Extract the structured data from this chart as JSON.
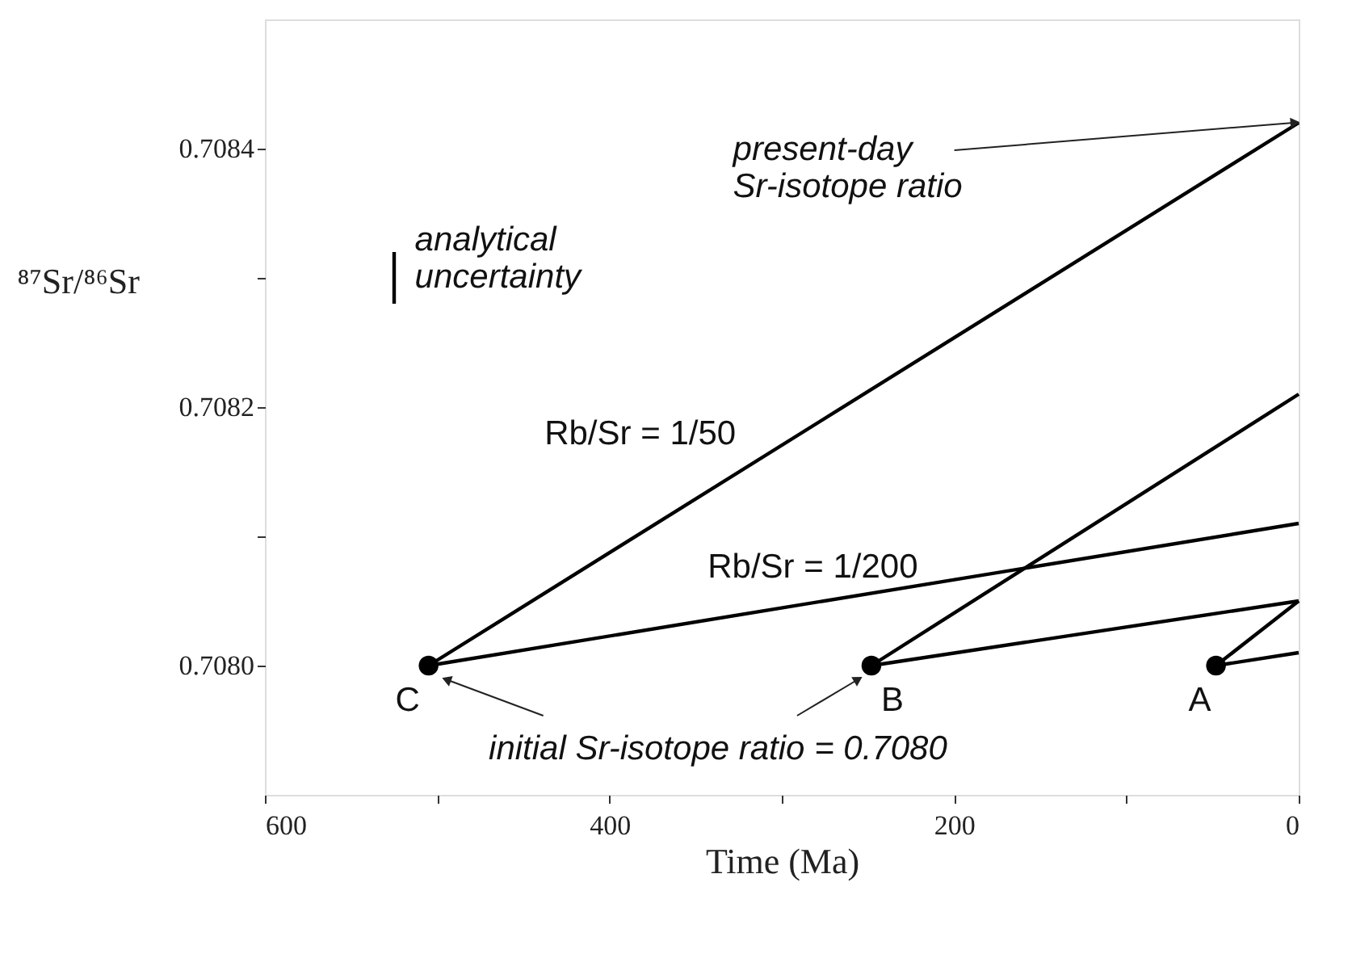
{
  "chart_data": {
    "type": "line",
    "xlabel": "Time (Ma)",
    "ylabel": "⁸⁷Sr/⁸⁶Sr",
    "xlim": [
      600,
      0
    ],
    "ylim": [
      0.7079,
      0.7085
    ],
    "xticks": [
      600,
      {
        "value": 500,
        "label": null
      },
      400,
      {
        "value": 300,
        "label": null
      },
      200,
      {
        "value": 100,
        "label": null
      },
      0
    ],
    "yticks": [
      {
        "value": 0.708,
        "label": "0.7080"
      },
      {
        "value": 0.7081,
        "label": null
      },
      {
        "value": 0.7082,
        "label": "0.7082"
      },
      {
        "value": 0.7083,
        "label": null
      },
      {
        "value": 0.7084,
        "label": "0.7084"
      }
    ],
    "series": [
      {
        "color": "#000000",
        "x": [
          505,
          0
        ],
        "values": [
          0.708,
          0.70842
        ]
      },
      {
        "color": "#000000",
        "x": [
          505,
          0
        ],
        "values": [
          0.708,
          0.70811
        ]
      },
      {
        "color": "#000000",
        "x": [
          248,
          0
        ],
        "values": [
          0.708,
          0.70821
        ]
      },
      {
        "color": "#000000",
        "x": [
          248,
          0
        ],
        "values": [
          0.708,
          0.70805
        ]
      },
      {
        "color": "#000000",
        "x": [
          48,
          0
        ],
        "values": [
          0.708,
          0.70805
        ]
      },
      {
        "color": "#000000",
        "x": [
          48,
          0
        ],
        "values": [
          0.708,
          0.70801
        ]
      },
      {
        "color": "#000000",
        "x": [
          525,
          525
        ],
        "values": [
          0.70828,
          0.70832
        ]
      },
      {
        "type": "scatter",
        "color": "#000000",
        "marker": "circle",
        "x": [
          505,
          248,
          48
        ],
        "values": [
          0.708,
          0.708,
          0.708
        ]
      }
    ],
    "annotations": [
      {
        "text": "present-day\nSr-isotope ratio",
        "x": 3,
        "y": 0.70842
      },
      "analytical\nuncertainty",
      "Rb/Sr = 1/50",
      "Rb/Sr = 1/200",
      {
        "text": "C",
        "x": 505,
        "y": 0.708
      },
      {
        "text": "B",
        "x": 248,
        "y": 0.708
      },
      {
        "text": "A",
        "x": 48,
        "y": 0.708
      },
      {
        "text": "initial Sr-isotope ratio = 0.7080",
        "x": 248,
        "y": 0.708
      }
    ]
  }
}
